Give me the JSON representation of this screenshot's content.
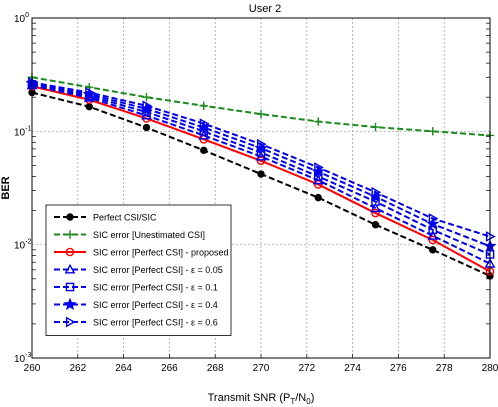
{
  "chart_data": {
    "type": "line",
    "title": "User 2",
    "xlabel_main": "Transmit SNR (P",
    "xlabel_sub1": "T",
    "xlabel_mid": "/N",
    "xlabel_sub2": "0",
    "xlabel_end": ")",
    "ylabel": "BER",
    "x": [
      260,
      262.5,
      265,
      267.5,
      270,
      272.5,
      275,
      277.5,
      280
    ],
    "xticks": [
      "260",
      "262",
      "264",
      "266",
      "268",
      "270",
      "272",
      "274",
      "276",
      "278",
      "280"
    ],
    "xtick_values": [
      260,
      262,
      264,
      266,
      268,
      270,
      272,
      274,
      276,
      278,
      280
    ],
    "xlim": [
      260,
      280
    ],
    "ylim": [
      0.001,
      1
    ],
    "yscale": "log",
    "yticks": [
      {
        "base": "10",
        "exp": "0",
        "value": 1
      },
      {
        "base": "10",
        "exp": "-1",
        "value": 0.1
      },
      {
        "base": "10",
        "exp": "-2",
        "value": 0.01
      },
      {
        "base": "10",
        "exp": "-3",
        "value": 0.001
      }
    ],
    "grid": true,
    "legend_position": "bottom-left",
    "series": [
      {
        "name": "Perfect CSI/SIC",
        "color": "#000000",
        "dash": "dashed",
        "marker": "dot",
        "values": [
          0.22,
          0.165,
          0.108,
          0.068,
          0.042,
          0.026,
          0.015,
          0.009,
          0.0053
        ]
      },
      {
        "name": "SIC error [Unestimated CSI]",
        "color": "#1a8a1a",
        "dash": "dashed",
        "marker": "plus",
        "values": [
          0.3,
          0.245,
          0.2,
          0.168,
          0.142,
          0.122,
          0.109,
          0.1,
          0.092
        ]
      },
      {
        "name": "SIC error [Perfect CSI] - proposed",
        "color": "#ff0000",
        "dash": "solid",
        "marker": "circle",
        "values": [
          0.25,
          0.19,
          0.13,
          0.085,
          0.055,
          0.034,
          0.019,
          0.011,
          0.0058
        ]
      },
      {
        "name": "SIC error [Perfect CSI] - ε = 0.05",
        "color": "#0000ee",
        "dash": "dashed",
        "marker": "triangle-up",
        "values": [
          0.255,
          0.198,
          0.138,
          0.092,
          0.06,
          0.037,
          0.021,
          0.012,
          0.0068
        ]
      },
      {
        "name": "SIC error [Perfect CSI] - ε = 0.1",
        "color": "#0000ee",
        "dash": "dashed",
        "marker": "square",
        "values": [
          0.26,
          0.205,
          0.148,
          0.1,
          0.065,
          0.04,
          0.024,
          0.0135,
          0.0082
        ]
      },
      {
        "name": "SIC error [Perfect CSI] - ε = 0.4",
        "color": "#0000ee",
        "dash": "dashed",
        "marker": "star",
        "values": [
          0.265,
          0.212,
          0.158,
          0.108,
          0.071,
          0.044,
          0.0265,
          0.0152,
          0.0097
        ]
      },
      {
        "name": "SIC error [Perfect CSI] - ε = 0.6",
        "color": "#0000ee",
        "dash": "dashed",
        "marker": "triangle-right",
        "values": [
          0.27,
          0.22,
          0.168,
          0.117,
          0.077,
          0.048,
          0.029,
          0.017,
          0.0118
        ]
      }
    ]
  }
}
